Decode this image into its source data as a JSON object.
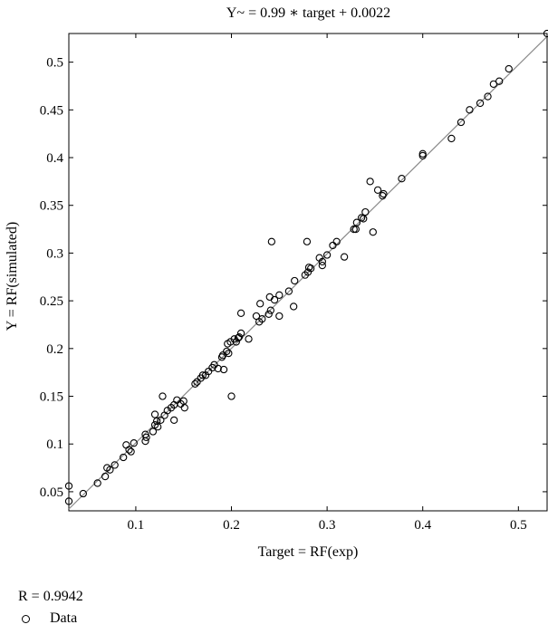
{
  "chart_data": {
    "type": "scatter",
    "title": "Y~ = 0.99 ∗ target + 0.0022",
    "xlabel": "Target = RF(exp)",
    "ylabel": "Y = RF(simulated)",
    "xlim": [
      0.03,
      0.53
    ],
    "ylim": [
      0.03,
      0.53
    ],
    "xticks": [
      0.1,
      0.2,
      0.3,
      0.4,
      0.5
    ],
    "xtick_labels": [
      "0.1",
      "0.2",
      "0.3",
      "0.4",
      "0.5"
    ],
    "yticks": [
      0.05,
      0.1,
      0.15,
      0.2,
      0.25,
      0.3,
      0.35,
      0.4,
      0.45,
      0.5
    ],
    "ytick_labels": [
      "0.05",
      "0.1",
      "0.15",
      "0.2",
      "0.25",
      "0.3",
      "0.35",
      "0.4",
      "0.45",
      "0.5"
    ],
    "grid": false,
    "fit_line": {
      "slope": 0.99,
      "intercept": 0.0022
    },
    "annotation": "R = 0.9942",
    "legend": [
      "Data"
    ],
    "series": [
      {
        "name": "Data",
        "marker": "open-circle",
        "points": [
          [
            0.03,
            0.04
          ],
          [
            0.03,
            0.056
          ],
          [
            0.045,
            0.048
          ],
          [
            0.06,
            0.059
          ],
          [
            0.068,
            0.066
          ],
          [
            0.07,
            0.075
          ],
          [
            0.073,
            0.073
          ],
          [
            0.078,
            0.078
          ],
          [
            0.087,
            0.086
          ],
          [
            0.09,
            0.099
          ],
          [
            0.093,
            0.094
          ],
          [
            0.095,
            0.092
          ],
          [
            0.098,
            0.101
          ],
          [
            0.11,
            0.11
          ],
          [
            0.11,
            0.103
          ],
          [
            0.111,
            0.107
          ],
          [
            0.118,
            0.113
          ],
          [
            0.12,
            0.12
          ],
          [
            0.12,
            0.131
          ],
          [
            0.122,
            0.124
          ],
          [
            0.123,
            0.118
          ],
          [
            0.126,
            0.125
          ],
          [
            0.128,
            0.15
          ],
          [
            0.13,
            0.13
          ],
          [
            0.133,
            0.135
          ],
          [
            0.137,
            0.138
          ],
          [
            0.14,
            0.141
          ],
          [
            0.14,
            0.125
          ],
          [
            0.143,
            0.146
          ],
          [
            0.147,
            0.142
          ],
          [
            0.15,
            0.145
          ],
          [
            0.151,
            0.138
          ],
          [
            0.162,
            0.163
          ],
          [
            0.164,
            0.165
          ],
          [
            0.168,
            0.169
          ],
          [
            0.17,
            0.172
          ],
          [
            0.173,
            0.172
          ],
          [
            0.176,
            0.176
          ],
          [
            0.18,
            0.18
          ],
          [
            0.182,
            0.183
          ],
          [
            0.186,
            0.179
          ],
          [
            0.19,
            0.191
          ],
          [
            0.191,
            0.193
          ],
          [
            0.192,
            0.178
          ],
          [
            0.195,
            0.197
          ],
          [
            0.196,
            0.205
          ],
          [
            0.197,
            0.195
          ],
          [
            0.199,
            0.207
          ],
          [
            0.2,
            0.15
          ],
          [
            0.203,
            0.21
          ],
          [
            0.205,
            0.207
          ],
          [
            0.207,
            0.211
          ],
          [
            0.208,
            0.212
          ],
          [
            0.21,
            0.237
          ],
          [
            0.21,
            0.216
          ],
          [
            0.218,
            0.21
          ],
          [
            0.226,
            0.234
          ],
          [
            0.229,
            0.228
          ],
          [
            0.23,
            0.247
          ],
          [
            0.232,
            0.231
          ],
          [
            0.239,
            0.236
          ],
          [
            0.24,
            0.254
          ],
          [
            0.241,
            0.24
          ],
          [
            0.242,
            0.312
          ],
          [
            0.245,
            0.251
          ],
          [
            0.25,
            0.256
          ],
          [
            0.25,
            0.234
          ],
          [
            0.26,
            0.26
          ],
          [
            0.265,
            0.244
          ],
          [
            0.266,
            0.271
          ],
          [
            0.277,
            0.277
          ],
          [
            0.279,
            0.312
          ],
          [
            0.28,
            0.28
          ],
          [
            0.281,
            0.285
          ],
          [
            0.283,
            0.284
          ],
          [
            0.292,
            0.295
          ],
          [
            0.295,
            0.291
          ],
          [
            0.295,
            0.287
          ],
          [
            0.3,
            0.298
          ],
          [
            0.306,
            0.308
          ],
          [
            0.31,
            0.312
          ],
          [
            0.318,
            0.296
          ],
          [
            0.328,
            0.325
          ],
          [
            0.33,
            0.325
          ],
          [
            0.331,
            0.332
          ],
          [
            0.336,
            0.337
          ],
          [
            0.338,
            0.336
          ],
          [
            0.34,
            0.343
          ],
          [
            0.345,
            0.375
          ],
          [
            0.348,
            0.322
          ],
          [
            0.353,
            0.366
          ],
          [
            0.358,
            0.36
          ],
          [
            0.359,
            0.362
          ],
          [
            0.378,
            0.378
          ],
          [
            0.4,
            0.402
          ],
          [
            0.4,
            0.404
          ],
          [
            0.43,
            0.42
          ],
          [
            0.44,
            0.437
          ],
          [
            0.449,
            0.45
          ],
          [
            0.46,
            0.457
          ],
          [
            0.468,
            0.464
          ],
          [
            0.474,
            0.477
          ],
          [
            0.48,
            0.48
          ],
          [
            0.49,
            0.493
          ],
          [
            0.53,
            0.53
          ]
        ]
      }
    ]
  }
}
